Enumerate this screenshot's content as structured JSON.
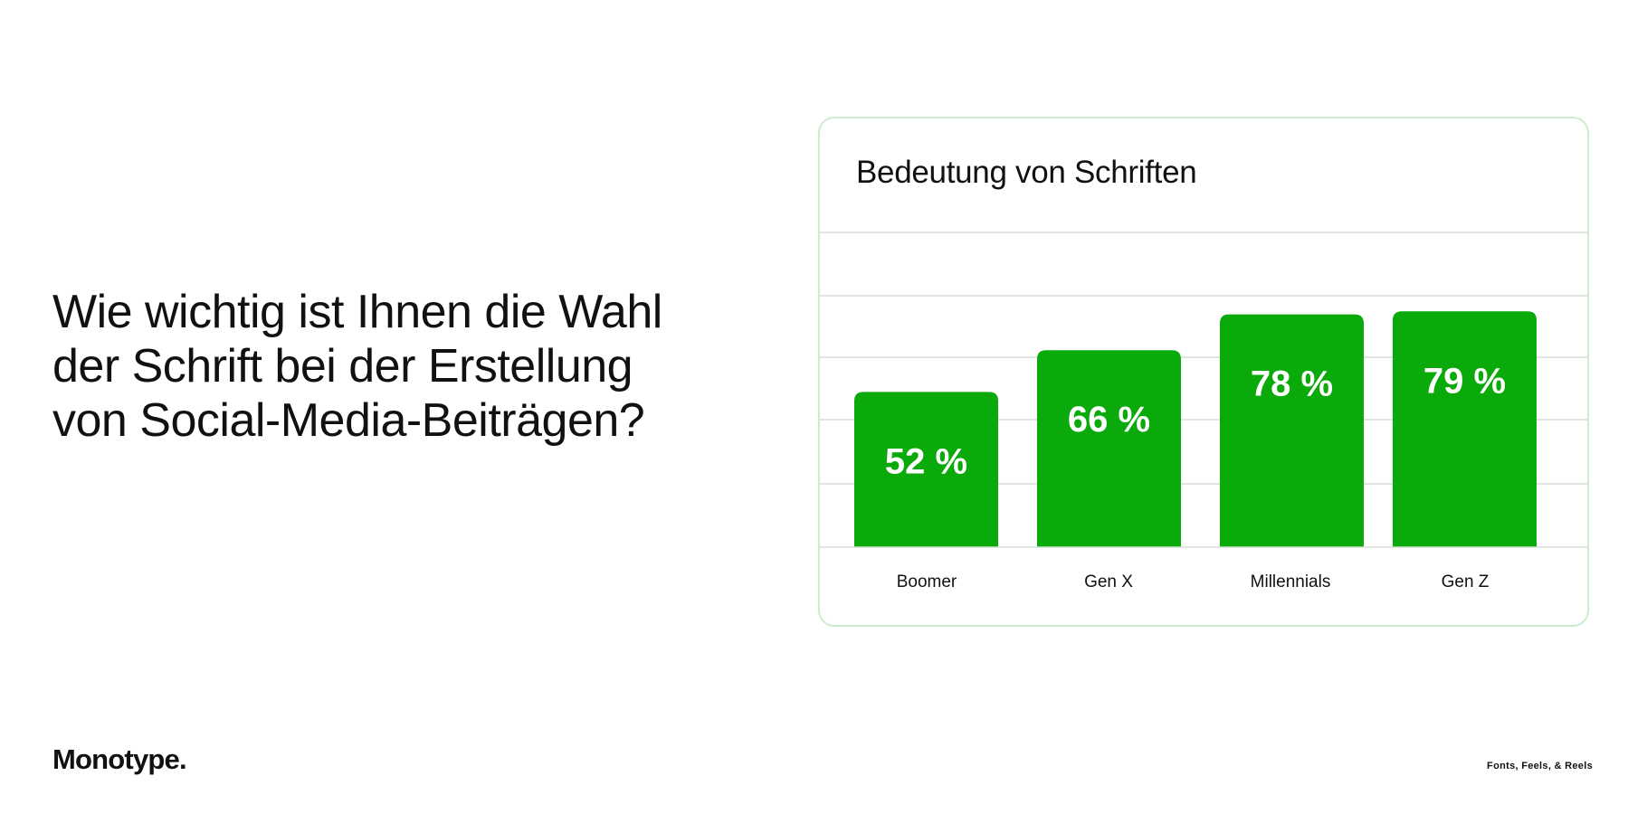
{
  "headline": {
    "line1": "Wie wichtig ist Ihnen die Wahl",
    "line2": "der Schrift bei der Erstellung",
    "line3": "von Social-Media-Beiträgen?"
  },
  "brand": {
    "logo_text": "Monotype.",
    "tagline": "Fonts, Feels, & Reels"
  },
  "colors": {
    "bar": "#0aaa0a",
    "bar_label": "#ffffff",
    "gridline": "#d4ddd4",
    "card_border": "#cdeccd"
  },
  "chart_data": {
    "type": "bar",
    "title": "Bedeutung von Schriften",
    "categories": [
      "Boomer",
      "Gen X",
      "Millennials",
      "Gen Z"
    ],
    "values": [
      52,
      66,
      78,
      79
    ],
    "value_labels": [
      "52 %",
      "66 %",
      "78 %",
      "79 %"
    ],
    "xlabel": "",
    "ylabel": "",
    "ylim": [
      0,
      100
    ],
    "grid": true,
    "legend": "none"
  }
}
